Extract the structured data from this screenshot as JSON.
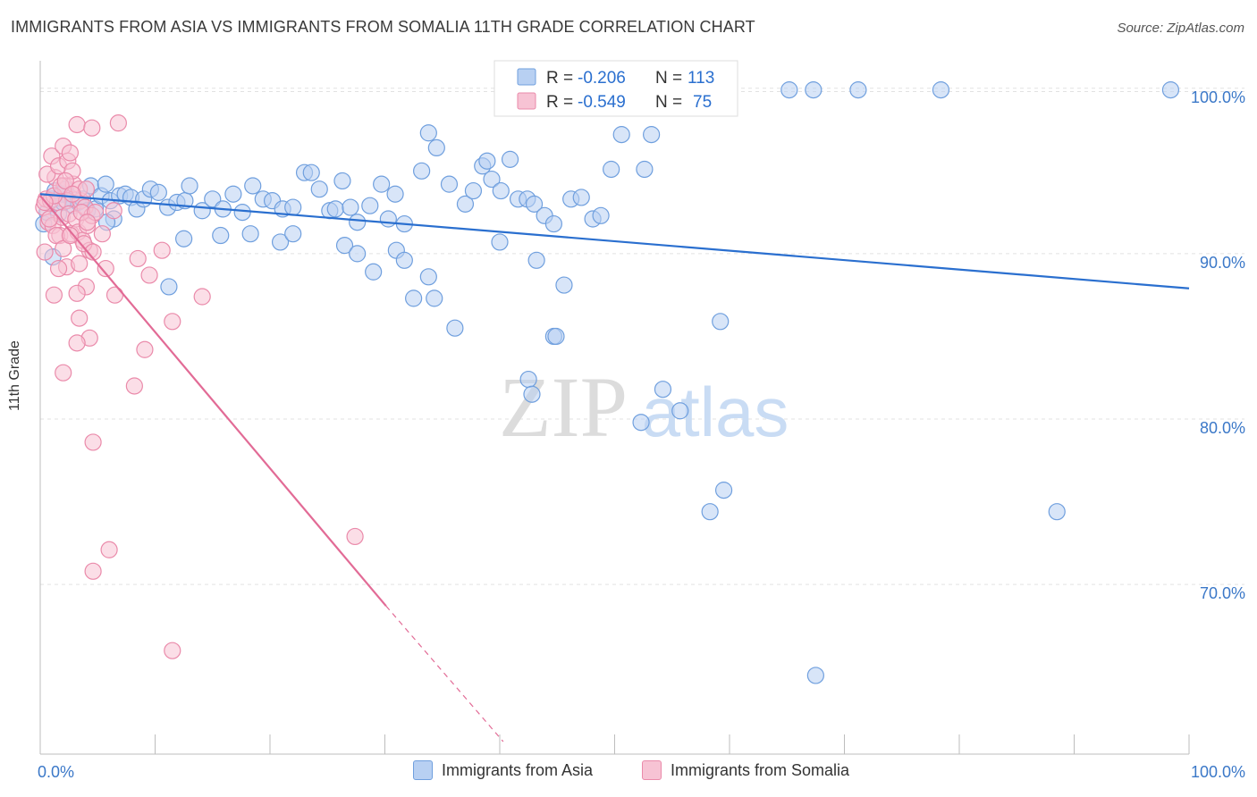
{
  "title": "IMMIGRANTS FROM ASIA VS IMMIGRANTS FROM SOMALIA 11TH GRADE CORRELATION CHART",
  "source": "Source: ZipAtlas.com",
  "watermark": {
    "zip": "ZIP",
    "atlas": "atlas"
  },
  "colors": {
    "asia": "#6f9fde",
    "asia_fill": "#b8d0f2",
    "asia_line": "#2a6fcf",
    "somalia": "#ea8aaa",
    "somalia_fill": "#f7c3d4",
    "somalia_line": "#e26b96",
    "tick_text": "#3b78c8"
  },
  "legend_top": {
    "rows": [
      {
        "r_label": "R = ",
        "r_value": "-0.206",
        "n_label": "N = ",
        "n_value": "113"
      },
      {
        "r_label": "R = ",
        "r_value": "-0.549",
        "n_label": "N = ",
        "n_value": "75"
      }
    ]
  },
  "legend_bottom": {
    "asia": "Immigrants from Asia",
    "somalia": "Immigrants from Somalia"
  },
  "chart_data": {
    "type": "scatter",
    "title": "IMMIGRANTS FROM ASIA VS IMMIGRANTS FROM SOMALIA 11TH GRADE CORRELATION CHART",
    "xlabel": "",
    "ylabel": "11th Grade",
    "xlim": [
      0,
      100
    ],
    "ylim": [
      60.5,
      101.5
    ],
    "x_tick_labels": [
      "0.0%",
      "100.0%"
    ],
    "y_ticks": [
      70,
      80,
      90,
      100
    ],
    "y_tick_labels": [
      "70.0%",
      "80.0%",
      "90.0%",
      "100.0%"
    ],
    "grid": true,
    "series": [
      {
        "name": "Immigrants from Asia",
        "trend": {
          "x": [
            0,
            100
          ],
          "y": [
            93.6,
            87.9
          ]
        },
        "points": [
          [
            0.3,
            91.8
          ],
          [
            0.6,
            92.5
          ],
          [
            1.0,
            93.3
          ],
          [
            1.3,
            93.8
          ],
          [
            1.6,
            92.4
          ],
          [
            1.9,
            93.6
          ],
          [
            2.2,
            93.9
          ],
          [
            2.6,
            93.4
          ],
          [
            2.9,
            92.9
          ],
          [
            3.3,
            93.1
          ],
          [
            3.7,
            93.3
          ],
          [
            4.1,
            92.6
          ],
          [
            4.4,
            94.1
          ],
          [
            4.8,
            92.7
          ],
          [
            5.3,
            93.5
          ],
          [
            5.7,
            94.2
          ],
          [
            6.1,
            93.2
          ],
          [
            6.4,
            92.1
          ],
          [
            6.9,
            93.5
          ],
          [
            7.4,
            93.6
          ],
          [
            7.9,
            93.4
          ],
          [
            8.4,
            92.7
          ],
          [
            9.0,
            93.3
          ],
          [
            9.6,
            93.9
          ],
          [
            10.3,
            93.7
          ],
          [
            11.1,
            92.8
          ],
          [
            11.9,
            93.1
          ],
          [
            12.6,
            93.2
          ],
          [
            13.0,
            94.1
          ],
          [
            14.1,
            92.6
          ],
          [
            15.0,
            93.3
          ],
          [
            15.9,
            92.7
          ],
          [
            16.8,
            93.6
          ],
          [
            17.6,
            92.5
          ],
          [
            18.5,
            94.1
          ],
          [
            19.4,
            93.3
          ],
          [
            20.2,
            93.2
          ],
          [
            21.1,
            92.7
          ],
          [
            22.0,
            92.8
          ],
          [
            23.0,
            94.9
          ],
          [
            23.6,
            94.9
          ],
          [
            24.3,
            93.9
          ],
          [
            25.2,
            92.6
          ],
          [
            25.7,
            92.7
          ],
          [
            26.3,
            94.4
          ],
          [
            27.0,
            92.8
          ],
          [
            27.6,
            91.9
          ],
          [
            28.7,
            92.9
          ],
          [
            29.7,
            94.2
          ],
          [
            30.3,
            92.1
          ],
          [
            30.9,
            93.6
          ],
          [
            31.7,
            91.8
          ],
          [
            33.2,
            95.0
          ],
          [
            33.8,
            97.3
          ],
          [
            34.5,
            96.4
          ],
          [
            35.6,
            94.2
          ],
          [
            37.0,
            93.0
          ],
          [
            37.7,
            93.8
          ],
          [
            38.5,
            95.3
          ],
          [
            38.9,
            95.6
          ],
          [
            39.3,
            94.5
          ],
          [
            40.1,
            93.8
          ],
          [
            40.9,
            95.7
          ],
          [
            41.6,
            93.3
          ],
          [
            42.4,
            93.3
          ],
          [
            43.0,
            93.0
          ],
          [
            43.9,
            92.3
          ],
          [
            44.7,
            91.8
          ],
          [
            46.2,
            93.3
          ],
          [
            47.1,
            93.4
          ],
          [
            48.1,
            92.1
          ],
          [
            48.8,
            92.3
          ],
          [
            49.7,
            95.1
          ],
          [
            50.6,
            97.2
          ],
          [
            52.6,
            95.1
          ],
          [
            53.2,
            97.2
          ],
          [
            2.0,
            93.1
          ],
          [
            5.8,
            91.9
          ],
          [
            12.5,
            90.9
          ],
          [
            15.7,
            91.1
          ],
          [
            18.3,
            91.2
          ],
          [
            20.9,
            90.7
          ],
          [
            22.0,
            91.2
          ],
          [
            26.5,
            90.5
          ],
          [
            27.6,
            90.0
          ],
          [
            29.0,
            88.9
          ],
          [
            31.0,
            90.2
          ],
          [
            31.7,
            89.6
          ],
          [
            33.8,
            88.6
          ],
          [
            32.5,
            87.3
          ],
          [
            34.3,
            87.3
          ],
          [
            36.1,
            85.5
          ],
          [
            40.0,
            90.7
          ],
          [
            43.2,
            89.6
          ],
          [
            44.7,
            85.0
          ],
          [
            44.9,
            85.0
          ],
          [
            45.6,
            88.1
          ],
          [
            11.2,
            88.0
          ],
          [
            42.5,
            82.4
          ],
          [
            42.8,
            81.5
          ],
          [
            54.2,
            81.8
          ],
          [
            52.3,
            79.8
          ],
          [
            55.7,
            80.5
          ],
          [
            59.2,
            85.9
          ],
          [
            59.3,
            99.9
          ],
          [
            65.2,
            99.9
          ],
          [
            67.3,
            99.9
          ],
          [
            71.2,
            99.9
          ],
          [
            78.4,
            99.9
          ],
          [
            98.4,
            99.9
          ],
          [
            53.5,
            99.9
          ],
          [
            59.5,
            75.7
          ],
          [
            58.3,
            74.4
          ],
          [
            88.5,
            74.4
          ],
          [
            67.5,
            64.5
          ],
          [
            1.1,
            89.8
          ]
        ]
      },
      {
        "name": "Immigrants from Somalia",
        "trend": {
          "x": [
            0,
            30.1
          ],
          "y": [
            93.5,
            68.7
          ]
        },
        "trend_dashed": {
          "x": [
            30.1,
            40.3
          ],
          "y": [
            68.7,
            60.5
          ]
        },
        "points": [
          [
            0.3,
            92.8
          ],
          [
            0.5,
            93.3
          ],
          [
            0.7,
            91.9
          ],
          [
            0.9,
            93.2
          ],
          [
            1.1,
            91.7
          ],
          [
            1.3,
            94.6
          ],
          [
            1.5,
            93.1
          ],
          [
            1.7,
            91.1
          ],
          [
            1.9,
            92.2
          ],
          [
            2.1,
            94.1
          ],
          [
            2.3,
            93.2
          ],
          [
            2.5,
            92.4
          ],
          [
            2.7,
            91.2
          ],
          [
            2.9,
            94.2
          ],
          [
            3.1,
            92.1
          ],
          [
            3.3,
            91.3
          ],
          [
            3.5,
            93.2
          ],
          [
            3.7,
            90.8
          ],
          [
            3.9,
            92.8
          ],
          [
            4.1,
            91.7
          ],
          [
            4.3,
            90.2
          ],
          [
            4.5,
            92.3
          ],
          [
            0.6,
            94.8
          ],
          [
            1.0,
            95.9
          ],
          [
            1.6,
            95.3
          ],
          [
            2.0,
            96.5
          ],
          [
            2.4,
            95.6
          ],
          [
            2.6,
            96.1
          ],
          [
            2.8,
            95.0
          ],
          [
            3.2,
            97.8
          ],
          [
            4.5,
            97.6
          ],
          [
            6.8,
            97.9
          ],
          [
            1.2,
            93.5
          ],
          [
            1.8,
            94.1
          ],
          [
            2.2,
            94.4
          ],
          [
            3.4,
            93.9
          ],
          [
            3.6,
            92.5
          ],
          [
            4.0,
            93.9
          ],
          [
            4.8,
            92.5
          ],
          [
            5.4,
            91.2
          ],
          [
            0.4,
            93.1
          ],
          [
            0.8,
            92.1
          ],
          [
            1.4,
            91.1
          ],
          [
            2.0,
            90.3
          ],
          [
            2.6,
            91.1
          ],
          [
            3.8,
            90.6
          ],
          [
            4.1,
            91.9
          ],
          [
            4.6,
            90.1
          ],
          [
            5.7,
            89.1
          ],
          [
            8.5,
            89.7
          ],
          [
            10.6,
            90.2
          ],
          [
            2.3,
            89.2
          ],
          [
            3.4,
            89.4
          ],
          [
            4.0,
            88.0
          ],
          [
            3.2,
            87.6
          ],
          [
            1.2,
            87.5
          ],
          [
            6.5,
            87.5
          ],
          [
            9.5,
            88.7
          ],
          [
            14.1,
            87.4
          ],
          [
            11.5,
            85.9
          ],
          [
            3.4,
            86.1
          ],
          [
            4.3,
            84.9
          ],
          [
            3.2,
            84.6
          ],
          [
            9.1,
            84.2
          ],
          [
            2.0,
            82.8
          ],
          [
            8.2,
            82.0
          ],
          [
            4.6,
            78.6
          ],
          [
            27.4,
            72.9
          ],
          [
            6.0,
            72.1
          ],
          [
            4.6,
            70.8
          ],
          [
            11.5,
            66.0
          ],
          [
            0.4,
            90.1
          ],
          [
            1.6,
            89.1
          ],
          [
            6.4,
            92.6
          ],
          [
            2.8,
            93.6
          ]
        ]
      }
    ]
  }
}
